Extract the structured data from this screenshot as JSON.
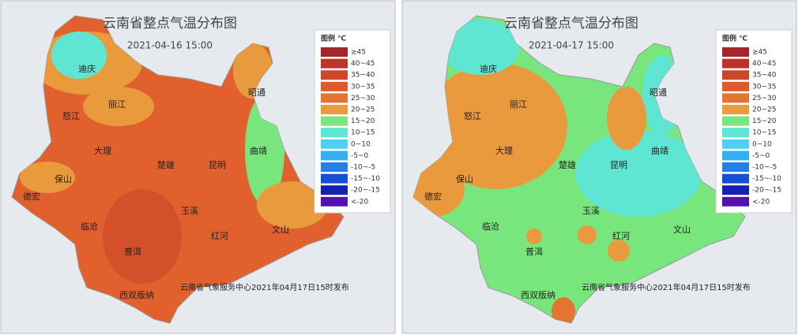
{
  "panels": [
    {
      "title": "云南省整点气温分布图",
      "date": "2021-04-16 15:00",
      "legend_title": "图例 ℃",
      "legend": [
        {
          "label": "≥45",
          "color": "#a3262a"
        },
        {
          "label": "40~45",
          "color": "#bb3329"
        },
        {
          "label": "35~40",
          "color": "#cc4629"
        },
        {
          "label": "30~35",
          "color": "#dd5a2c"
        },
        {
          "label": "25~30",
          "color": "#e67431"
        },
        {
          "label": "20~25",
          "color": "#eb9a3c"
        },
        {
          "label": "15~20",
          "color": "#78e67c"
        },
        {
          "label": "10~15",
          "color": "#5fe6d2"
        },
        {
          "label": "0~10",
          "color": "#4fd2f2"
        },
        {
          "label": "-5~0",
          "color": "#33b0f0"
        },
        {
          "label": "-10~-5",
          "color": "#2380e6"
        },
        {
          "label": "-15~-10",
          "color": "#1450d2"
        },
        {
          "label": "-20~-15",
          "color": "#1420b0"
        },
        {
          "label": "<-20",
          "color": "#5312b0"
        }
      ],
      "cities": [
        "迪庆",
        "丽江",
        "怒江",
        "昭通",
        "大理",
        "楚雄",
        "昆明",
        "曲靖",
        "保山",
        "德宏",
        "玉溪",
        "临沧",
        "红河",
        "文山",
        "普洱",
        "西双版纳"
      ],
      "footer": "云南省气象服务中心2021年04月17日15时发布"
    },
    {
      "title": "云南省整点气温分布图",
      "date": "2021-04-17 15:00",
      "legend_title": "图例 ℃",
      "legend": [
        {
          "label": "≥45",
          "color": "#a3262a"
        },
        {
          "label": "40~45",
          "color": "#bb3329"
        },
        {
          "label": "35~40",
          "color": "#cc4629"
        },
        {
          "label": "30~35",
          "color": "#dd5a2c"
        },
        {
          "label": "25~30",
          "color": "#e67431"
        },
        {
          "label": "20~25",
          "color": "#eb9a3c"
        },
        {
          "label": "15~20",
          "color": "#78e67c"
        },
        {
          "label": "10~15",
          "color": "#5fe6d2"
        },
        {
          "label": "0~10",
          "color": "#4fd2f2"
        },
        {
          "label": "-5~0",
          "color": "#33b0f0"
        },
        {
          "label": "-10~-5",
          "color": "#2380e6"
        },
        {
          "label": "-15~-10",
          "color": "#1450d2"
        },
        {
          "label": "-20~-15",
          "color": "#1420b0"
        },
        {
          "label": "<-20",
          "color": "#5312b0"
        }
      ],
      "cities": [
        "迪庆",
        "丽江",
        "怒江",
        "昭通",
        "大理",
        "楚雄",
        "昆明",
        "曲靖",
        "保山",
        "德宏",
        "玉溪",
        "临沧",
        "红河",
        "文山",
        "普洱",
        "西双版纳"
      ],
      "footer": "云南省气象服务中心2021年04月17日15时发布"
    }
  ]
}
